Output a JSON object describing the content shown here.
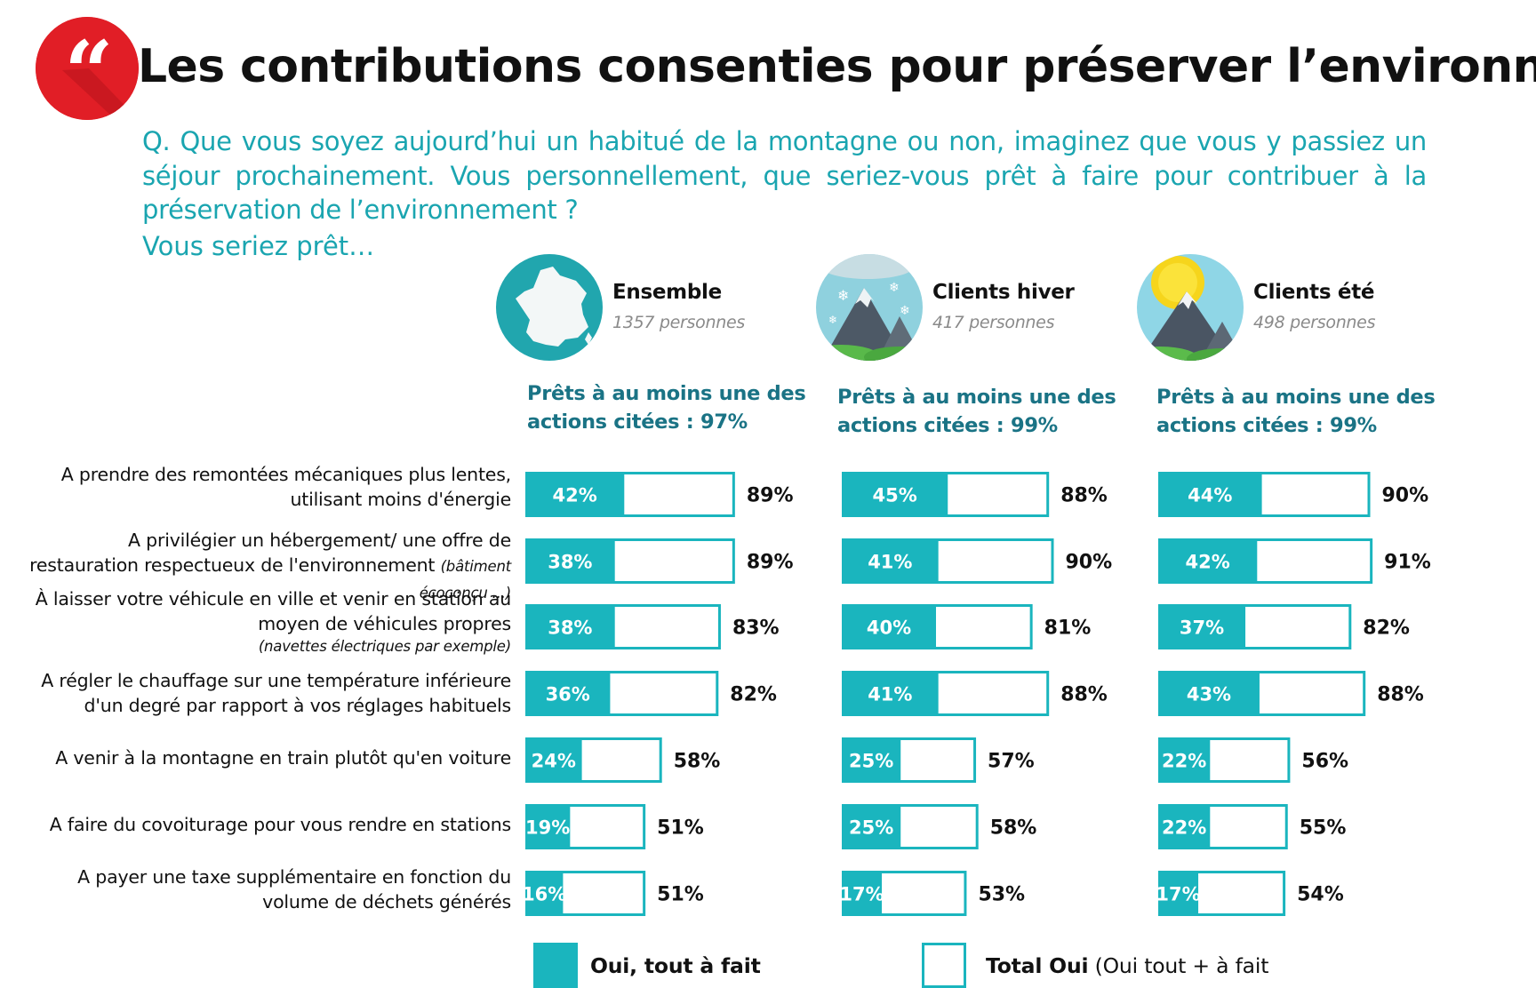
{
  "header": {
    "quote_glyph": "“",
    "title": "Les contributions consenties pour préserver l’environnement",
    "question": "Q. Que vous soyez aujourd’hui un habitué de la montagne ou non, imaginez que vous y passiez un séjour prochainement. Vous personnellement, que seriez-vous prêt à faire pour contribuer à la préservation de l’environnement ?",
    "question_lead": "Vous seriez prêt…"
  },
  "colors": {
    "accent": "#1ab5be",
    "quote_red": "#e11e26",
    "question": "#1aa5b0",
    "summary": "#1a7385"
  },
  "groups": [
    {
      "icon": "france-map-icon",
      "name": "Ensemble",
      "count": "1357 personnes",
      "at_least": "Prêts à au moins une des actions citées : 97%"
    },
    {
      "icon": "snowy-mountain-icon",
      "name": "Clients hiver",
      "count": "417 personnes",
      "at_least": "Prêts à au moins une des actions citées : 99%"
    },
    {
      "icon": "sunny-mountain-icon",
      "name": "Clients été",
      "count": "498 personnes",
      "at_least": "Prêts à au moins une des actions citées : 99%"
    }
  ],
  "rows": [
    {
      "label": "A prendre des remontées mécaniques plus lentes, utilisant moins d'énergie",
      "note": ""
    },
    {
      "label": "A privilégier un hébergement/ une offre de restauration respectueux de l'environnement",
      "note": "(bâtiment écoconçu ...)"
    },
    {
      "label": "À laisser votre véhicule en ville et venir en station au moyen de véhicules propres",
      "note": "(navettes électriques par exemple)"
    },
    {
      "label": "A régler le chauffage sur une température inférieure d'un degré par rapport à vos réglages habituels",
      "note": ""
    },
    {
      "label": "A venir à la montagne en train plutôt qu'en voiture",
      "note": ""
    },
    {
      "label": "A faire du covoiturage pour vous rendre en stations",
      "note": ""
    },
    {
      "label": "A payer une taxe supplémentaire en fonction du volume de déchets générés",
      "note": ""
    }
  ],
  "legend": {
    "fully_label": "Oui, tout à fait",
    "total_label": "Total Oui",
    "total_note": "(Oui tout + à fait"
  },
  "chart_data": {
    "type": "bar",
    "orientation": "horizontal",
    "categories": [
      "A prendre des remontées mécaniques plus lentes, utilisant moins d'énergie",
      "A privilégier un hébergement/ une offre de restauration respectueux de l'environnement (bâtiment écoconçu ...)",
      "À laisser votre véhicule en ville et venir en station au moyen de véhicules propres (navettes électriques par exemple)",
      "A régler le chauffage sur une température inférieure d'un degré par rapport à vos réglages habituels",
      "A venir à la montagne en train plutôt qu'en voiture",
      "A faire du covoiturage pour vous rendre en stations",
      "A payer une taxe supplémentaire en fonction du volume de déchets générés"
    ],
    "panels": [
      {
        "group": "Ensemble",
        "series": [
          {
            "name": "Oui, tout à fait",
            "values": [
              42,
              38,
              38,
              36,
              24,
              19,
              16
            ]
          },
          {
            "name": "Total Oui",
            "values": [
              89,
              89,
              83,
              82,
              58,
              51,
              51
            ]
          }
        ]
      },
      {
        "group": "Clients hiver",
        "series": [
          {
            "name": "Oui, tout à fait",
            "values": [
              45,
              41,
              40,
              41,
              25,
              25,
              17
            ]
          },
          {
            "name": "Total Oui",
            "values": [
              88,
              90,
              81,
              88,
              57,
              58,
              53
            ]
          }
        ]
      },
      {
        "group": "Clients été",
        "series": [
          {
            "name": "Oui, tout à fait",
            "values": [
              44,
              42,
              37,
              43,
              22,
              22,
              17
            ]
          },
          {
            "name": "Total Oui",
            "values": [
              90,
              91,
              82,
              88,
              56,
              55,
              54
            ]
          }
        ]
      }
    ],
    "value_suffix": "%",
    "xlim": [
      0,
      100
    ],
    "legend_position": "bottom"
  }
}
